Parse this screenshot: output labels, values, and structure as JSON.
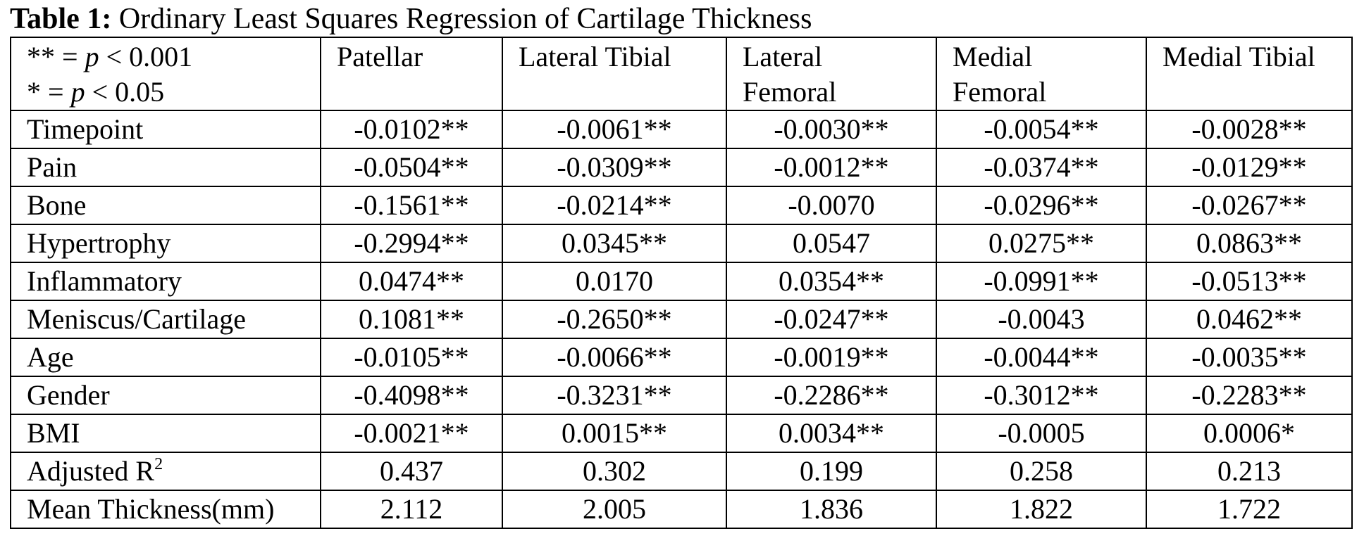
{
  "caption": {
    "label": "Table 1:",
    "text": " Ordinary Least Squares Regression of Cartilage Thickness"
  },
  "legend": {
    "line1_prefix": "** = ",
    "line1_p": "p",
    "line1_suffix": " < 0.001",
    "line2_prefix": "* = ",
    "line2_p": "p",
    "line2_suffix": " < 0.05"
  },
  "columns": [
    {
      "line1": "Patellar",
      "line2": ""
    },
    {
      "line1": "Lateral Tibial",
      "line2": ""
    },
    {
      "line1": "Lateral",
      "line2": "Femoral"
    },
    {
      "line1": "Medial",
      "line2": "Femoral"
    },
    {
      "line1": "Medial Tibial",
      "line2": ""
    }
  ],
  "rows": [
    {
      "label": "Timepoint",
      "sup": "",
      "values": [
        "-0.0102**",
        "-0.0061**",
        "-0.0030**",
        "-0.0054**",
        "-0.0028**"
      ]
    },
    {
      "label": "Pain",
      "sup": "",
      "values": [
        "-0.0504**",
        "-0.0309**",
        "-0.0012**",
        "-0.0374**",
        "-0.0129**"
      ]
    },
    {
      "label": "Bone",
      "sup": "",
      "values": [
        "-0.1561**",
        "-0.0214**",
        "-0.0070",
        "-0.0296**",
        "-0.0267**"
      ]
    },
    {
      "label": "Hypertrophy",
      "sup": "",
      "values": [
        "-0.2994**",
        "0.0345**",
        "0.0547",
        "0.0275**",
        "0.0863**"
      ]
    },
    {
      "label": "Inflammatory",
      "sup": "",
      "values": [
        "0.0474**",
        "0.0170",
        "0.0354**",
        "-0.0991**",
        "-0.0513**"
      ]
    },
    {
      "label": "Meniscus/Cartilage",
      "sup": "",
      "values": [
        "0.1081**",
        "-0.2650**",
        "-0.0247**",
        "-0.0043",
        "0.0462**"
      ]
    },
    {
      "label": "Age",
      "sup": "",
      "values": [
        "-0.0105**",
        "-0.0066**",
        "-0.0019**",
        "-0.0044**",
        "-0.0035**"
      ]
    },
    {
      "label": "Gender",
      "sup": "",
      "values": [
        "-0.4098**",
        "-0.3231**",
        "-0.2286**",
        "-0.3012**",
        "-0.2283**"
      ]
    },
    {
      "label": "BMI",
      "sup": "",
      "values": [
        "-0.0021**",
        "0.0015**",
        "0.0034**",
        "-0.0005",
        "0.0006*"
      ]
    },
    {
      "label": "Adjusted R",
      "sup": "2",
      "values": [
        "0.437",
        "0.302",
        "0.199",
        "0.258",
        "0.213"
      ]
    },
    {
      "label": "Mean Thickness(mm)",
      "sup": "",
      "values": [
        "2.112",
        "2.005",
        "1.836",
        "1.822",
        "1.722"
      ]
    }
  ]
}
